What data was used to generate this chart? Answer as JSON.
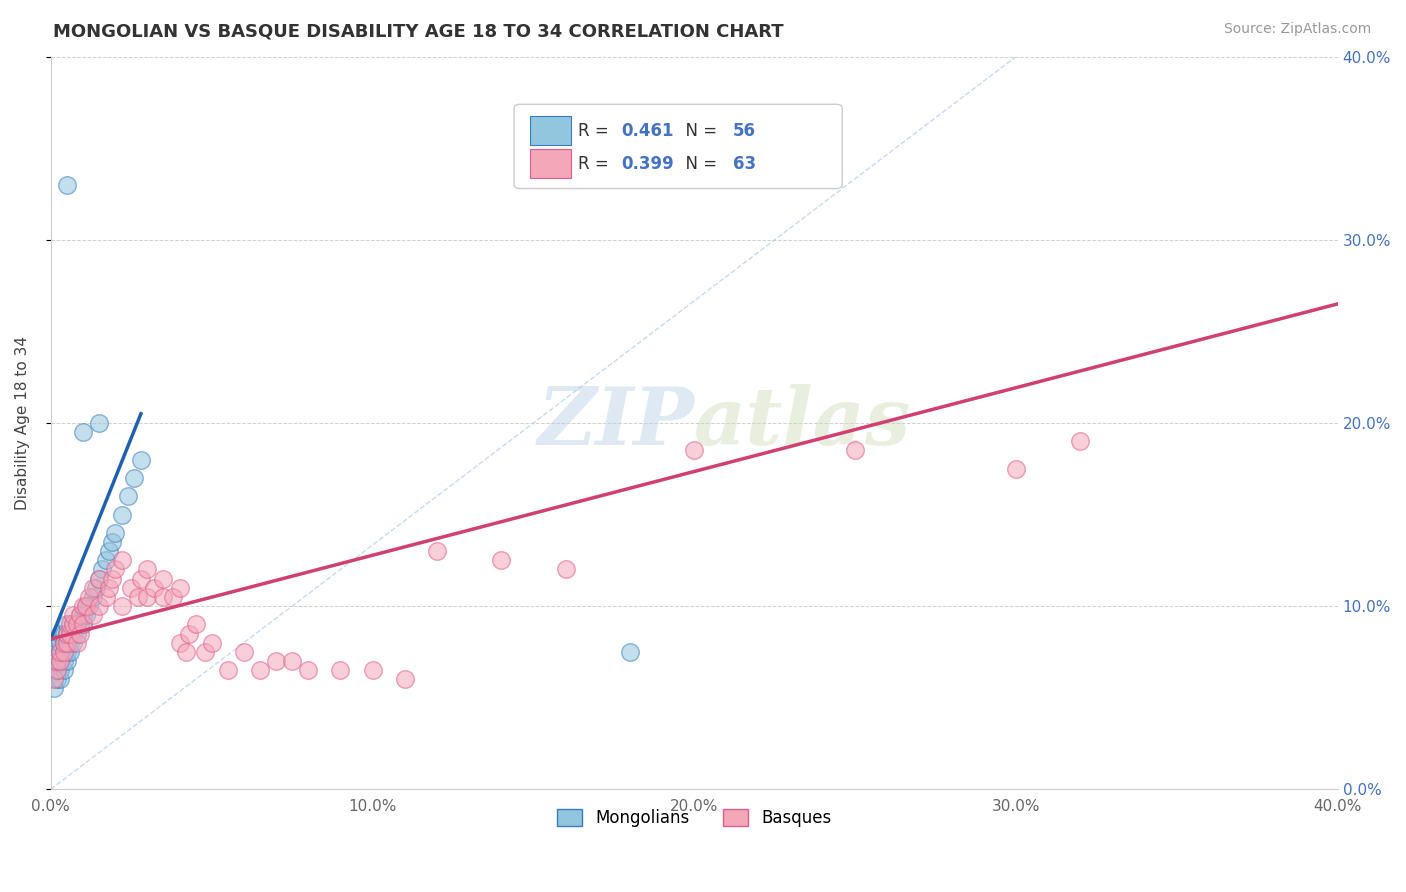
{
  "title": "MONGOLIAN VS BASQUE DISABILITY AGE 18 TO 34 CORRELATION CHART",
  "source": "Source: ZipAtlas.com",
  "ylabel": "Disability Age 18 to 34",
  "xlim": [
    0.0,
    0.4
  ],
  "ylim": [
    0.0,
    0.4
  ],
  "xticks": [
    0.0,
    0.1,
    0.2,
    0.3,
    0.4
  ],
  "yticks": [
    0.0,
    0.1,
    0.2,
    0.3,
    0.4
  ],
  "mongolian_color": "#92c5de",
  "basque_color": "#f4a7b9",
  "mongolian_edge_color": "#3a7abf",
  "basque_edge_color": "#e05c8a",
  "mongolian_line_color": "#2060b0",
  "basque_line_color": "#d04070",
  "ref_line_color": "#aaccee",
  "mongolian_R": 0.461,
  "mongolian_N": 56,
  "basque_R": 0.399,
  "basque_N": 63,
  "watermark": "ZIPatlas",
  "legend_label_mongolians": "Mongolians",
  "legend_label_basques": "Basques",
  "mongolian_scatter": [
    [
      0.001,
      0.055
    ],
    [
      0.001,
      0.065
    ],
    [
      0.001,
      0.07
    ],
    [
      0.001,
      0.075
    ],
    [
      0.002,
      0.06
    ],
    [
      0.002,
      0.065
    ],
    [
      0.002,
      0.07
    ],
    [
      0.002,
      0.075
    ],
    [
      0.002,
      0.08
    ],
    [
      0.003,
      0.06
    ],
    [
      0.003,
      0.065
    ],
    [
      0.003,
      0.07
    ],
    [
      0.003,
      0.075
    ],
    [
      0.003,
      0.08
    ],
    [
      0.003,
      0.085
    ],
    [
      0.004,
      0.065
    ],
    [
      0.004,
      0.07
    ],
    [
      0.004,
      0.075
    ],
    [
      0.004,
      0.08
    ],
    [
      0.004,
      0.085
    ],
    [
      0.005,
      0.07
    ],
    [
      0.005,
      0.075
    ],
    [
      0.005,
      0.08
    ],
    [
      0.005,
      0.085
    ],
    [
      0.005,
      0.09
    ],
    [
      0.006,
      0.075
    ],
    [
      0.006,
      0.08
    ],
    [
      0.006,
      0.085
    ],
    [
      0.007,
      0.08
    ],
    [
      0.007,
      0.085
    ],
    [
      0.007,
      0.09
    ],
    [
      0.008,
      0.085
    ],
    [
      0.008,
      0.09
    ],
    [
      0.009,
      0.09
    ],
    [
      0.009,
      0.095
    ],
    [
      0.01,
      0.09
    ],
    [
      0.01,
      0.095
    ],
    [
      0.011,
      0.095
    ],
    [
      0.011,
      0.1
    ],
    [
      0.012,
      0.1
    ],
    [
      0.013,
      0.105
    ],
    [
      0.014,
      0.11
    ],
    [
      0.015,
      0.115
    ],
    [
      0.016,
      0.12
    ],
    [
      0.017,
      0.125
    ],
    [
      0.018,
      0.13
    ],
    [
      0.019,
      0.135
    ],
    [
      0.02,
      0.14
    ],
    [
      0.022,
      0.15
    ],
    [
      0.024,
      0.16
    ],
    [
      0.026,
      0.17
    ],
    [
      0.028,
      0.18
    ],
    [
      0.01,
      0.195
    ],
    [
      0.015,
      0.2
    ],
    [
      0.005,
      0.33
    ],
    [
      0.18,
      0.075
    ]
  ],
  "basque_scatter": [
    [
      0.001,
      0.06
    ],
    [
      0.002,
      0.065
    ],
    [
      0.002,
      0.07
    ],
    [
      0.003,
      0.07
    ],
    [
      0.003,
      0.075
    ],
    [
      0.004,
      0.075
    ],
    [
      0.004,
      0.08
    ],
    [
      0.005,
      0.08
    ],
    [
      0.005,
      0.085
    ],
    [
      0.006,
      0.085
    ],
    [
      0.006,
      0.09
    ],
    [
      0.007,
      0.09
    ],
    [
      0.007,
      0.095
    ],
    [
      0.008,
      0.08
    ],
    [
      0.008,
      0.09
    ],
    [
      0.009,
      0.085
    ],
    [
      0.009,
      0.095
    ],
    [
      0.01,
      0.09
    ],
    [
      0.01,
      0.1
    ],
    [
      0.011,
      0.1
    ],
    [
      0.012,
      0.105
    ],
    [
      0.013,
      0.095
    ],
    [
      0.013,
      0.11
    ],
    [
      0.015,
      0.1
    ],
    [
      0.015,
      0.115
    ],
    [
      0.017,
      0.105
    ],
    [
      0.018,
      0.11
    ],
    [
      0.019,
      0.115
    ],
    [
      0.02,
      0.12
    ],
    [
      0.022,
      0.1
    ],
    [
      0.022,
      0.125
    ],
    [
      0.025,
      0.11
    ],
    [
      0.027,
      0.105
    ],
    [
      0.028,
      0.115
    ],
    [
      0.03,
      0.105
    ],
    [
      0.03,
      0.12
    ],
    [
      0.032,
      0.11
    ],
    [
      0.035,
      0.105
    ],
    [
      0.035,
      0.115
    ],
    [
      0.038,
      0.105
    ],
    [
      0.04,
      0.08
    ],
    [
      0.04,
      0.11
    ],
    [
      0.042,
      0.075
    ],
    [
      0.043,
      0.085
    ],
    [
      0.045,
      0.09
    ],
    [
      0.048,
      0.075
    ],
    [
      0.05,
      0.08
    ],
    [
      0.055,
      0.065
    ],
    [
      0.06,
      0.075
    ],
    [
      0.065,
      0.065
    ],
    [
      0.07,
      0.07
    ],
    [
      0.075,
      0.07
    ],
    [
      0.2,
      0.185
    ],
    [
      0.25,
      0.185
    ],
    [
      0.3,
      0.175
    ],
    [
      0.32,
      0.19
    ],
    [
      0.12,
      0.13
    ],
    [
      0.14,
      0.125
    ],
    [
      0.16,
      0.12
    ],
    [
      0.08,
      0.065
    ],
    [
      0.09,
      0.065
    ],
    [
      0.1,
      0.065
    ],
    [
      0.11,
      0.06
    ]
  ],
  "mongolian_line": [
    [
      0.0,
      0.082
    ],
    [
      0.028,
      0.205
    ]
  ],
  "basque_line": [
    [
      0.0,
      0.082
    ],
    [
      0.4,
      0.265
    ]
  ]
}
